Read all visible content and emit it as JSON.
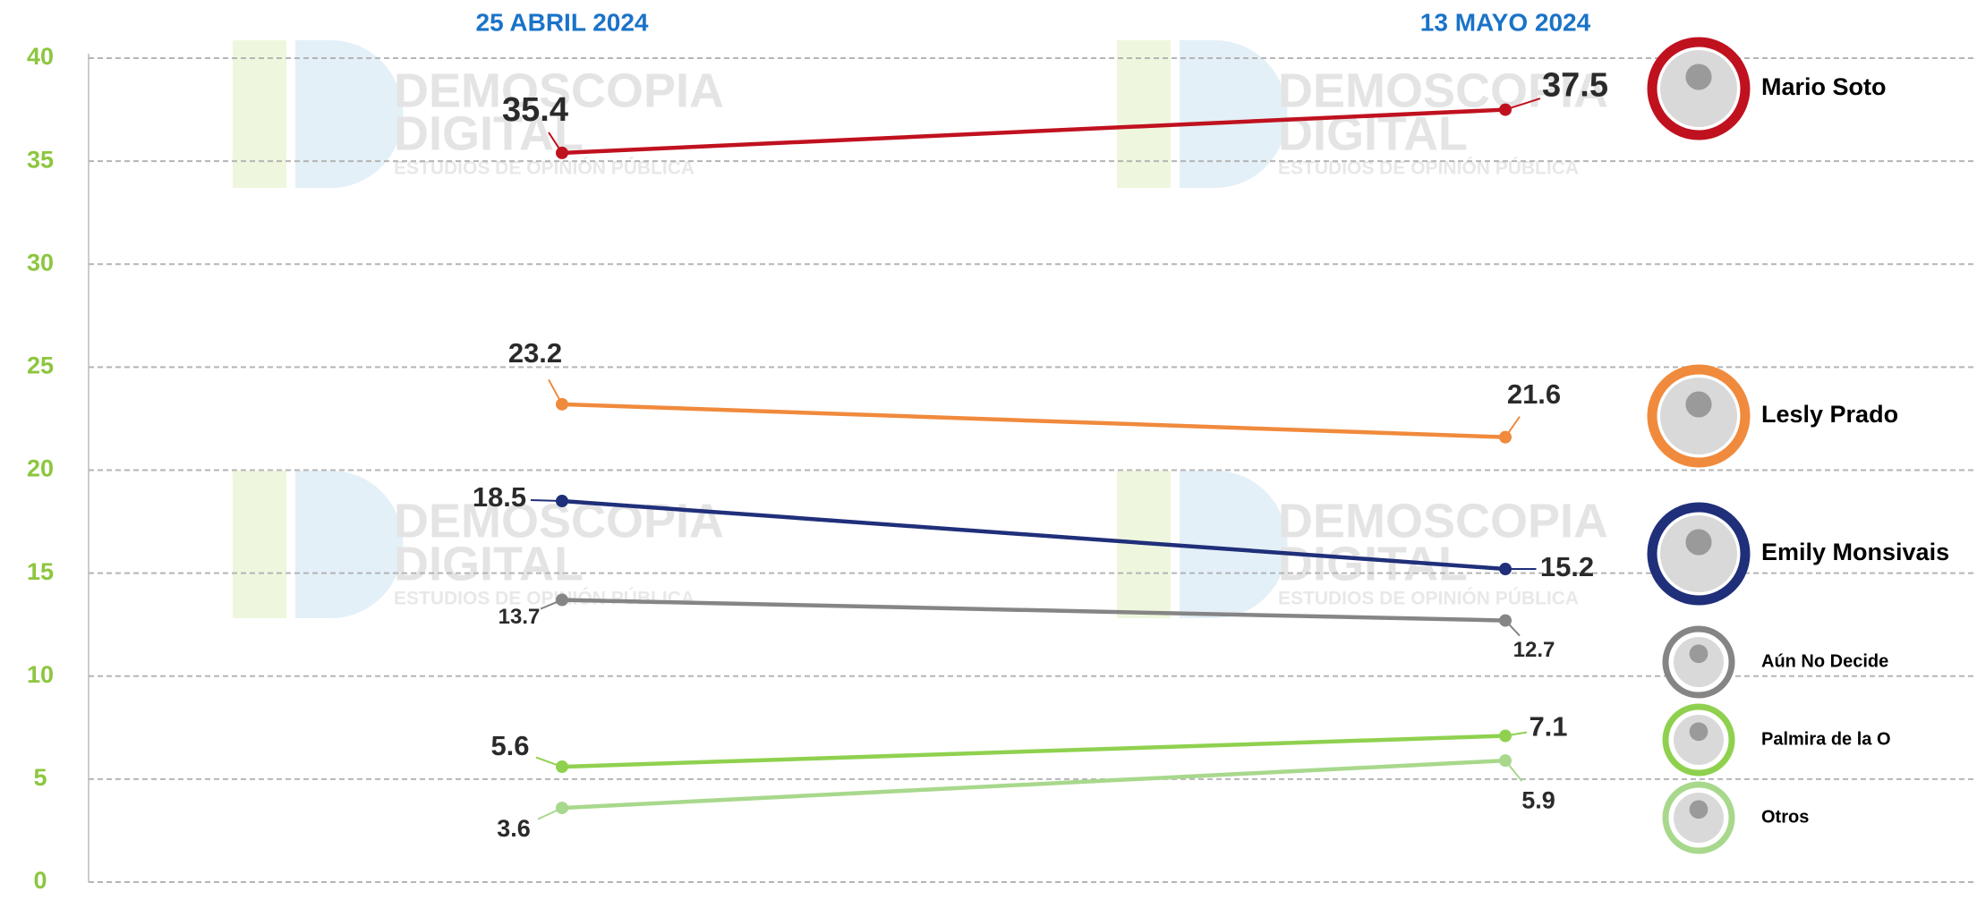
{
  "chart_data": {
    "type": "line",
    "categories": [
      "25 ABRIL 2024",
      "13 MAYO 2024"
    ],
    "series": [
      {
        "name": "Mario Soto",
        "color": "#c0111f",
        "values": [
          35.4,
          37.5
        ]
      },
      {
        "name": "Lesly Prado",
        "color": "#f08a3c",
        "values": [
          23.2,
          21.6
        ]
      },
      {
        "name": "Emily Monsivais",
        "color": "#1f2f7a",
        "values": [
          18.5,
          15.2
        ]
      },
      {
        "name": "Aún No Decide",
        "color": "#858585",
        "values": [
          13.7,
          12.7
        ]
      },
      {
        "name": "Palmira de la O",
        "color": "#8fd14f",
        "values": [
          5.6,
          7.1
        ]
      },
      {
        "name": "Otros",
        "color": "#a8d88c",
        "values": [
          3.6,
          5.9
        ]
      }
    ],
    "ylim": [
      0,
      40
    ],
    "yticks": [
      0,
      5,
      10,
      15,
      20,
      25,
      30,
      35,
      40
    ],
    "grid": true,
    "watermark": [
      "DEMOSCOPIA",
      "DIGITAL",
      "ESTUDIOS DE OPINIÓN PÚBLICA"
    ]
  }
}
